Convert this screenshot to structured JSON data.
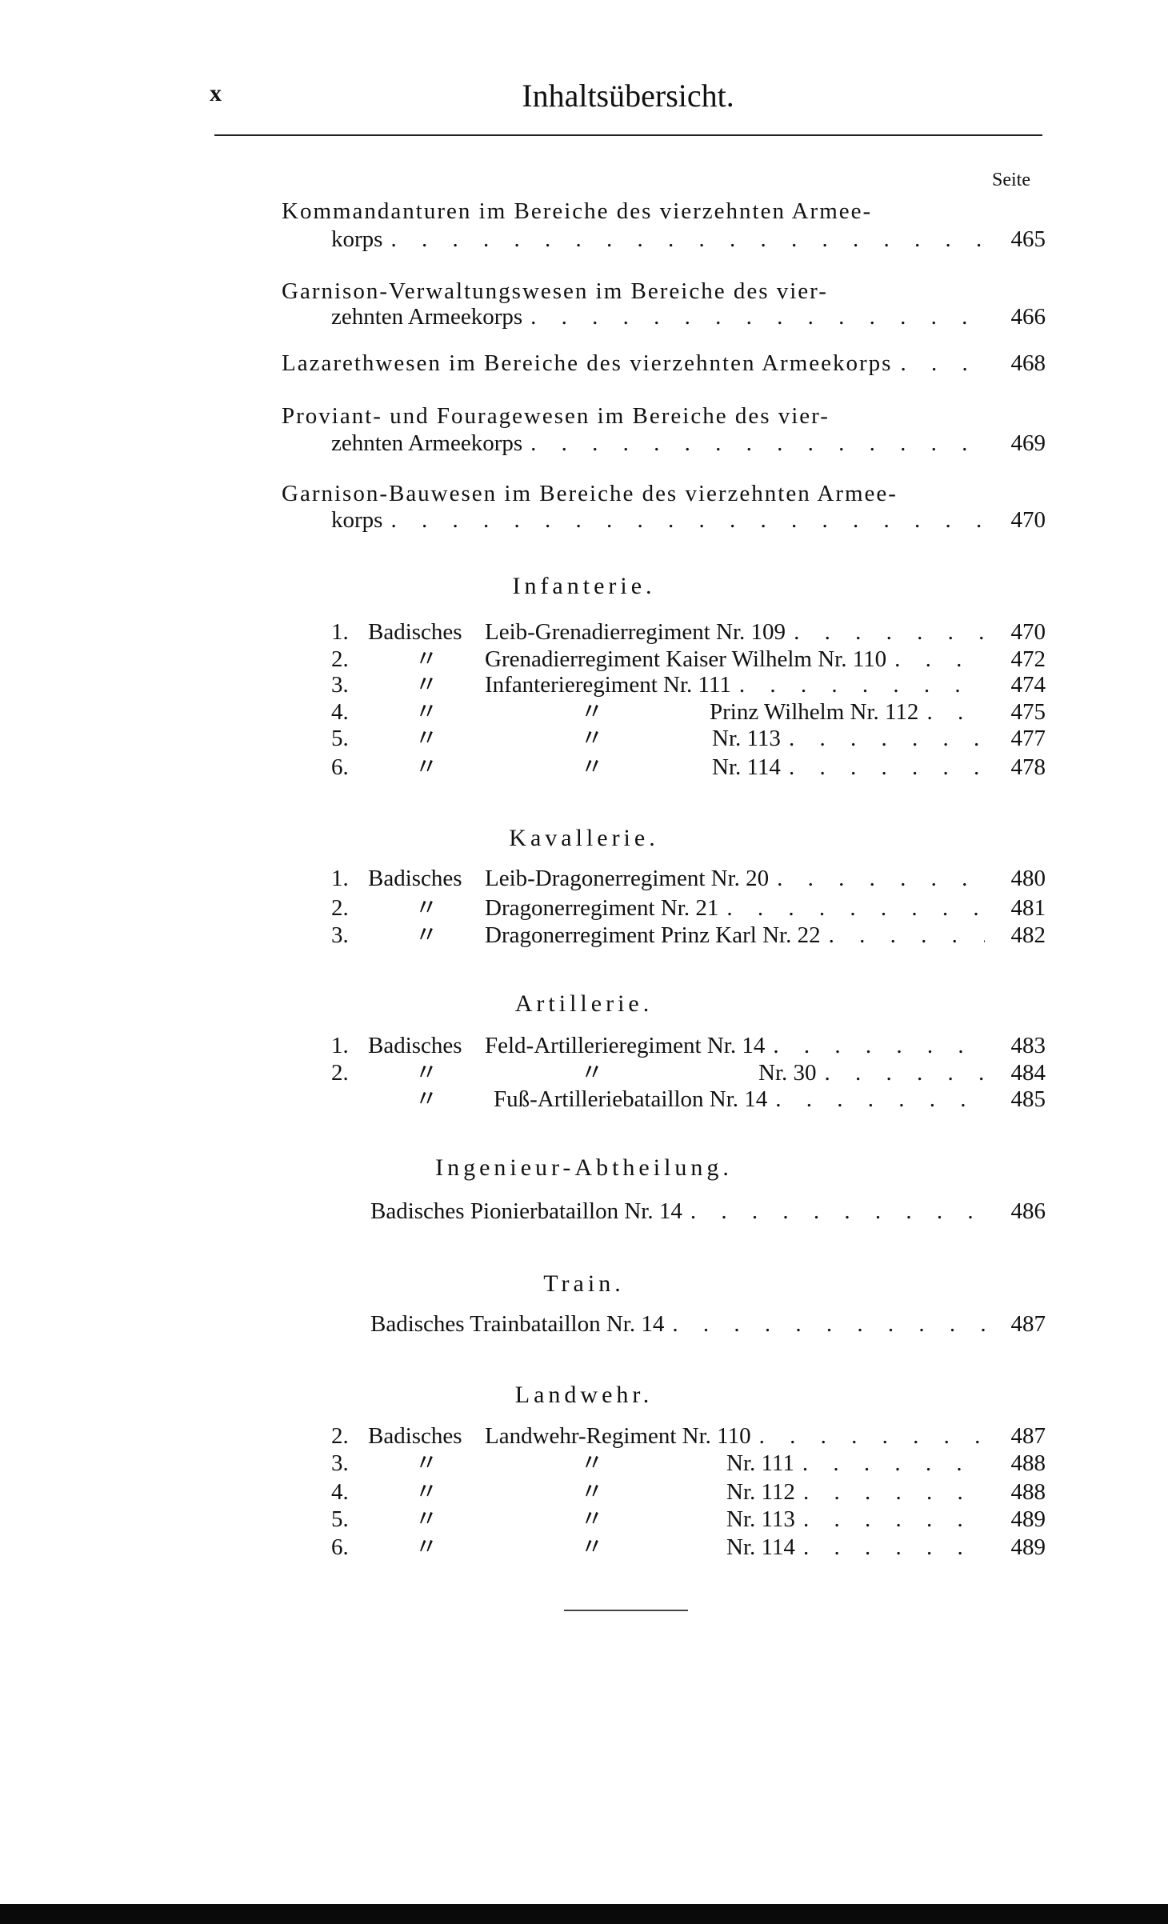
{
  "header": {
    "page_number": "x",
    "title": "Inhaltsübersicht.",
    "seite_label": "Seite"
  },
  "top_entries": [
    {
      "line1": "Kommandanturen im Bereiche des vierzehnten Armee-",
      "line2": "korps",
      "page": "465"
    },
    {
      "line1": "Garnison-Verwaltungswesen im Bereiche des vier-",
      "line2": "zehnten Armeekorps",
      "page": "466"
    },
    {
      "line1": "Lazarethwesen im Bereiche des vierzehnten Armeekorps",
      "page": "468"
    },
    {
      "line1": "Proviant- und Fouragewesen im Bereiche des vier-",
      "line2": "zehnten Armeekorps",
      "page": "469"
    },
    {
      "line1": "Garnison-Bauwesen im Bereiche des vierzehnten Armee-",
      "line2": "korps",
      "page": "470"
    }
  ],
  "sections": {
    "infanterie": {
      "heading": "Infanterie.",
      "rows": [
        {
          "num": "1.",
          "c1": "Badisches",
          "text": "Leib-Grenadierregiment Nr. 109",
          "page": "470"
        },
        {
          "num": "2.",
          "c1": "〃",
          "text": "Grenadierregiment Kaiser Wilhelm Nr. 110",
          "page": "472"
        },
        {
          "num": "3.",
          "c1": "〃",
          "text": "Infanterieregiment Nr. 111",
          "page": "474"
        },
        {
          "num": "4.",
          "c1": "〃",
          "c2": "〃",
          "text": "Prinz Wilhelm Nr. 112",
          "page": "475"
        },
        {
          "num": "5.",
          "c1": "〃",
          "c2": "〃",
          "text": "Nr. 113",
          "page": "477"
        },
        {
          "num": "6.",
          "c1": "〃",
          "c2": "〃",
          "text": "Nr. 114",
          "page": "478"
        }
      ]
    },
    "kavallerie": {
      "heading": "Kavallerie.",
      "rows": [
        {
          "num": "1.",
          "c1": "Badisches",
          "text": "Leib-Dragonerregiment Nr. 20",
          "page": "480"
        },
        {
          "num": "2.",
          "c1": "〃",
          "text": "Dragonerregiment Nr. 21",
          "page": "481"
        },
        {
          "num": "3.",
          "c1": "〃",
          "text": "Dragonerregiment Prinz Karl Nr. 22",
          "page": "482"
        }
      ]
    },
    "artillerie": {
      "heading": "Artillerie.",
      "rows": [
        {
          "num": "1.",
          "c1": "Badisches",
          "text": "Feld-Artillerieregiment Nr. 14",
          "page": "483"
        },
        {
          "num": "2.",
          "c1": "〃",
          "c2": "〃",
          "text": "Nr. 30",
          "page": "484"
        },
        {
          "c1": "〃",
          "text": "Fuß-Artilleriebataillon Nr. 14",
          "page": "485"
        }
      ]
    },
    "ingenieur": {
      "heading": "Ingenieur-Abtheilung.",
      "rows": [
        {
          "text": "Badisches Pionierbataillon Nr. 14",
          "page": "486"
        }
      ]
    },
    "train": {
      "heading": "Train.",
      "rows": [
        {
          "text": "Badisches Trainbataillon Nr. 14",
          "page": "487"
        }
      ]
    },
    "landwehr": {
      "heading": "Landwehr.",
      "rows": [
        {
          "num": "2.",
          "c1": "Badisches",
          "text": "Landwehr-Regiment Nr. 110",
          "page": "487"
        },
        {
          "num": "3.",
          "c1": "〃",
          "c2": "〃",
          "text": "Nr. 111",
          "page": "488"
        },
        {
          "num": "4.",
          "c1": "〃",
          "c2": "〃",
          "text": "Nr. 112",
          "page": "488"
        },
        {
          "num": "5.",
          "c1": "〃",
          "c2": "〃",
          "text": "Nr. 113",
          "page": "489"
        },
        {
          "num": "6.",
          "c1": "〃",
          "c2": "〃",
          "text": "Nr. 114",
          "page": "489"
        }
      ]
    }
  }
}
